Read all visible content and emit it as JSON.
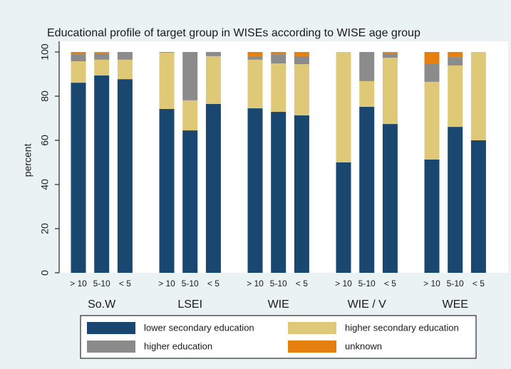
{
  "chart_data": {
    "type": "stacked_bar",
    "title": "Educational profile of target group in WISEs according to WISE age group",
    "y_label": "percent",
    "groups": [
      "So.W",
      "LSEI",
      "WIE",
      "WIE / V",
      "WEE"
    ],
    "categories": [
      "> 10",
      "5-10",
      "< 5",
      "> 10",
      "5-10",
      "< 5",
      "> 10",
      "5-10",
      "< 5",
      "> 10",
      "5-10",
      "< 5",
      "> 10",
      "5-10",
      "< 5"
    ],
    "series": [
      {
        "name": "lower secondary education",
        "color": "#1a476f",
        "values": [
          86.1,
          89.4,
          87.7,
          74.2,
          64.5,
          76.5,
          74.5,
          72.9,
          71.3,
          50,
          75.2,
          67.4,
          51.3,
          66.1,
          60
        ]
      },
      {
        "name": "higher secondary education",
        "color": "#dfc978",
        "values": [
          9.7,
          7.1,
          8.8,
          25.5,
          13.6,
          21.6,
          22,
          21.9,
          23.2,
          50,
          11.6,
          30,
          35.2,
          27.8,
          40
        ]
      },
      {
        "name": "higher education",
        "color": "#8b8b8b",
        "values": [
          3.2,
          2.9,
          3.5,
          0.3,
          21.9,
          1.9,
          1.6,
          4.2,
          3.6,
          0,
          13.2,
          2,
          8.3,
          3.8,
          0
        ]
      },
      {
        "name": "unknown",
        "color": "#e5800f",
        "values": [
          1,
          0.6,
          0,
          0,
          0,
          0,
          1.9,
          1,
          1.9,
          0,
          0,
          0.6,
          5.2,
          2.3,
          0
        ]
      }
    ],
    "ylim": [
      0,
      100
    ],
    "yticks": [
      0,
      20,
      40,
      60,
      80,
      100
    ]
  }
}
